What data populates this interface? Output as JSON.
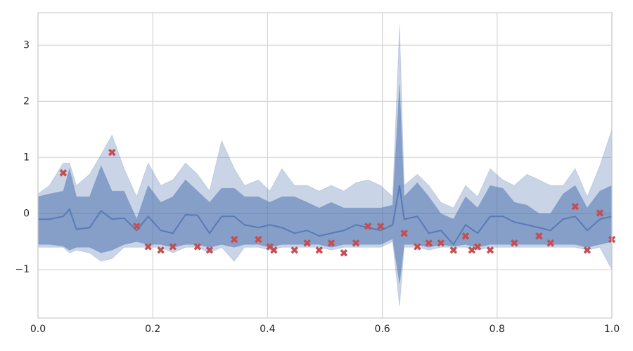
{
  "chart_data": {
    "type": "line",
    "x": [
      0,
      0.02,
      0.044,
      0.055,
      0.067,
      0.09,
      0.11,
      0.129,
      0.15,
      0.172,
      0.192,
      0.214,
      0.235,
      0.257,
      0.278,
      0.299,
      0.32,
      0.342,
      0.36,
      0.384,
      0.404,
      0.425,
      0.447,
      0.469,
      0.49,
      0.511,
      0.533,
      0.554,
      0.575,
      0.597,
      0.618,
      0.63,
      0.638,
      0.661,
      0.681,
      0.702,
      0.724,
      0.745,
      0.766,
      0.788,
      0.81,
      0.83,
      0.852,
      0.873,
      0.893,
      0.915,
      0.936,
      0.957,
      0.979,
      1.0
    ],
    "bands": [
      {
        "color": "#4c72b0",
        "upper": [
          0.35,
          0.5,
          0.9,
          0.9,
          0.5,
          0.7,
          1.05,
          1.4,
          0.8,
          0.3,
          0.9,
          0.5,
          0.6,
          0.9,
          0.7,
          0.4,
          1.3,
          0.8,
          0.5,
          0.6,
          0.4,
          0.8,
          0.5,
          0.5,
          0.4,
          0.5,
          0.4,
          0.55,
          0.6,
          0.5,
          0.3,
          3.35,
          0.5,
          0.7,
          0.5,
          0.2,
          0.1,
          0.5,
          0.3,
          0.8,
          0.6,
          0.5,
          0.7,
          0.6,
          0.5,
          0.5,
          0.8,
          0.3,
          0.85,
          1.5
        ],
        "lower": [
          -0.6,
          -0.6,
          -0.6,
          -0.7,
          -0.65,
          -0.7,
          -0.85,
          -0.8,
          -0.6,
          -0.6,
          -0.6,
          -0.6,
          -0.7,
          -0.6,
          -0.6,
          -0.7,
          -0.6,
          -0.85,
          -0.6,
          -0.6,
          -0.65,
          -0.6,
          -0.6,
          -0.6,
          -0.6,
          -0.65,
          -0.6,
          -0.6,
          -0.6,
          -0.6,
          -0.5,
          -1.65,
          -0.6,
          -0.6,
          -0.65,
          -0.6,
          -0.6,
          -0.6,
          -0.65,
          -0.6,
          -0.6,
          -0.6,
          -0.6,
          -0.6,
          -0.6,
          -0.6,
          -0.6,
          -0.65,
          -0.6,
          -1.0
        ]
      },
      {
        "color": "#4c72b0",
        "upper": [
          0.3,
          0.35,
          0.4,
          0.8,
          0.3,
          0.3,
          0.85,
          0.4,
          0.4,
          -0.1,
          0.5,
          0.2,
          0.3,
          0.6,
          0.4,
          0.2,
          0.45,
          0.45,
          0.3,
          0.3,
          0.2,
          0.3,
          0.3,
          0.2,
          0.1,
          0.2,
          0.1,
          0.1,
          0.1,
          0.1,
          0.15,
          2.3,
          0.3,
          0.55,
          0.3,
          0.0,
          -0.1,
          0.3,
          0.1,
          0.5,
          0.45,
          0.2,
          0.15,
          0.0,
          0.0,
          0.35,
          0.5,
          0.1,
          0.4,
          0.5
        ],
        "lower": [
          -0.55,
          -0.55,
          -0.58,
          -0.65,
          -0.6,
          -0.6,
          -0.7,
          -0.65,
          -0.55,
          -0.5,
          -0.55,
          -0.55,
          -0.6,
          -0.55,
          -0.55,
          -0.6,
          -0.55,
          -0.6,
          -0.55,
          -0.55,
          -0.6,
          -0.55,
          -0.55,
          -0.55,
          -0.55,
          -0.6,
          -0.55,
          -0.55,
          -0.55,
          -0.55,
          -0.45,
          -1.25,
          -0.55,
          -0.55,
          -0.6,
          -0.55,
          -0.58,
          -0.55,
          -0.6,
          -0.55,
          -0.55,
          -0.55,
          -0.55,
          -0.55,
          -0.55,
          -0.55,
          -0.55,
          -0.6,
          -0.55,
          -0.5
        ]
      }
    ],
    "line": {
      "color": "#4c72b0",
      "values": [
        -0.1,
        -0.1,
        -0.05,
        0.08,
        -0.28,
        -0.25,
        0.05,
        -0.1,
        -0.08,
        -0.3,
        -0.05,
        -0.3,
        -0.35,
        -0.02,
        -0.03,
        -0.35,
        -0.05,
        -0.05,
        -0.2,
        -0.25,
        -0.2,
        -0.25,
        -0.35,
        -0.3,
        -0.4,
        -0.35,
        -0.3,
        -0.2,
        -0.25,
        -0.3,
        -0.2,
        0.5,
        -0.1,
        -0.05,
        -0.35,
        -0.3,
        -0.55,
        -0.2,
        -0.35,
        -0.05,
        -0.05,
        -0.15,
        -0.2,
        -0.25,
        -0.3,
        -0.1,
        -0.05,
        -0.3,
        -0.1,
        -0.05
      ]
    },
    "points": {
      "color": "#c44e52",
      "x": [
        0.044,
        0.129,
        0.172,
        0.192,
        0.214,
        0.235,
        0.278,
        0.299,
        0.342,
        0.384,
        0.404,
        0.411,
        0.447,
        0.469,
        0.49,
        0.511,
        0.533,
        0.554,
        0.575,
        0.597,
        0.638,
        0.661,
        0.681,
        0.702,
        0.724,
        0.745,
        0.756,
        0.766,
        0.788,
        0.83,
        0.873,
        0.893,
        0.936,
        0.957,
        0.979,
        1.0
      ],
      "y": [
        0.725,
        1.09,
        -0.225,
        -0.59,
        -0.65,
        -0.59,
        -0.59,
        -0.65,
        -0.46,
        -0.46,
        -0.59,
        -0.65,
        -0.65,
        -0.525,
        -0.65,
        -0.525,
        -0.7,
        -0.525,
        -0.225,
        -0.225,
        -0.35,
        -0.59,
        -0.525,
        -0.525,
        -0.65,
        -0.4,
        -0.65,
        -0.59,
        -0.65,
        -0.525,
        -0.4,
        -0.525,
        0.125,
        -0.65,
        0.01,
        -0.46
      ]
    },
    "xlim": [
      0,
      1
    ],
    "ylim": [
      -1.86,
      3.58
    ],
    "xticks": [
      {
        "value": 0,
        "label": "0.0"
      },
      {
        "value": 0.2,
        "label": "0.2"
      },
      {
        "value": 0.4,
        "label": "0.4"
      },
      {
        "value": 0.6,
        "label": "0.6"
      },
      {
        "value": 0.8,
        "label": "0.8"
      },
      {
        "value": 1,
        "label": "1.0"
      }
    ],
    "yticks": [
      {
        "value": -1,
        "label": "−1"
      },
      0,
      1,
      2,
      3
    ],
    "grid": true
  }
}
